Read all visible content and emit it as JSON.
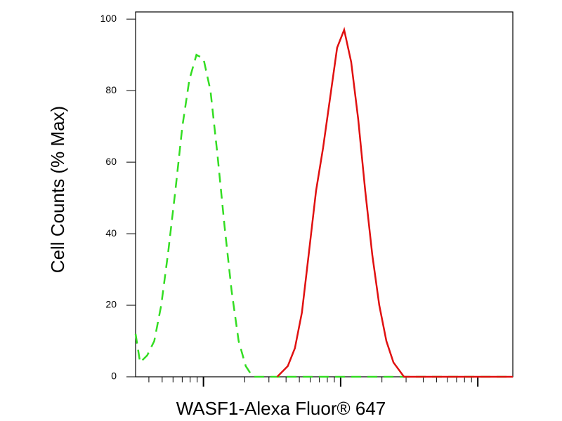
{
  "chart_data": {
    "type": "line",
    "x_label": "WASF1-Alexa Fluor® 647",
    "y_label": "Cell Counts (% Max)",
    "xscale": "log",
    "xlim": [
      32,
      18000
    ],
    "xticks": [
      100,
      1000,
      10000
    ],
    "ylim": [
      0,
      102
    ],
    "yticks": [
      0,
      20,
      40,
      60,
      80,
      100
    ],
    "series": [
      {
        "color": "#33dd22",
        "dashed": true,
        "x": [
          32,
          34.5,
          38.9,
          43.8,
          49.2,
          55.4,
          62.4,
          70.2,
          78.9,
          88.9,
          100,
          112.5,
          126.6,
          142.6,
          160.4,
          180.5,
          203.2,
          228.6,
          1194,
          18000
        ],
        "values": [
          12,
          4,
          6,
          10,
          20,
          35,
          52,
          70,
          83,
          90,
          89,
          80,
          62,
          42,
          24,
          10,
          3,
          0,
          0,
          0
        ]
      },
      {
        "color": "#e01010",
        "dashed": false,
        "x": [
          345,
          412,
          464,
          522,
          588,
          662,
          745,
          838,
          943,
          1061,
          1194,
          1343,
          1511,
          1702,
          1914,
          2154,
          2427,
          2897,
          18000
        ],
        "values": [
          0,
          3,
          8,
          18,
          35,
          52,
          64,
          78,
          92,
          97,
          88,
          72,
          52,
          34,
          20,
          10,
          4,
          0,
          0
        ]
      }
    ]
  }
}
